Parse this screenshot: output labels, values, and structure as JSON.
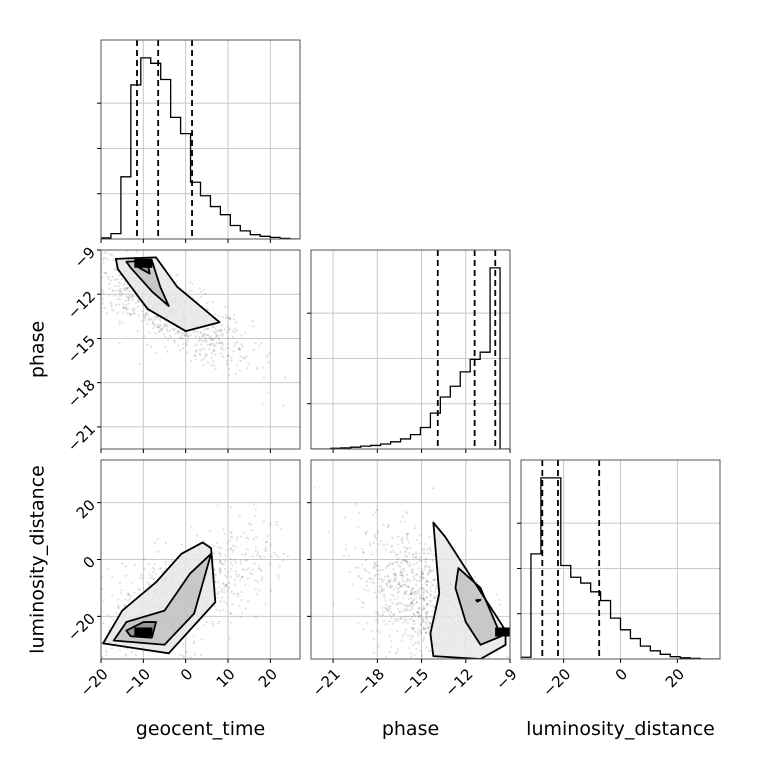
{
  "chart_data": {
    "type": "corner",
    "parameters": [
      "geocent_time",
      "phase",
      "luminosity_distance"
    ],
    "axis_labels": {
      "geocent_time": "geocent_time",
      "phase": "phase",
      "luminosity_distance": "luminosity_distance"
    },
    "ranges": {
      "geocent_time": [
        -20,
        27
      ],
      "phase": [
        -22.5,
        -9
      ],
      "luminosity_distance": [
        -35,
        35
      ]
    },
    "ticks": {
      "geocent_time": [
        -20,
        -10,
        0,
        10,
        20
      ],
      "phase": [
        -21,
        -18,
        -15,
        -12,
        -9
      ],
      "luminosity_distance": [
        -20,
        0,
        20
      ]
    },
    "tick_labels": {
      "geocent_time": [
        "−20",
        "−10",
        "0",
        "10",
        "20"
      ],
      "phase": [
        "−21",
        "−18",
        "−15",
        "−12",
        "−9"
      ],
      "luminosity_distance": [
        "−20",
        "0",
        "20"
      ]
    },
    "ld_diag_ticks": [
      -20,
      0,
      20
    ],
    "quantiles": {
      "geocent_time": [
        -11.5,
        -6.5,
        1.5
      ],
      "phase": [
        -13.9,
        -11.4,
        -10.0
      ],
      "luminosity_distance": [
        -27.5,
        -22.0,
        -7.5
      ]
    },
    "histograms": {
      "geocent_time": {
        "bins": [
          -20,
          -17.65,
          -15.3,
          -12.95,
          -10.6,
          -8.25,
          -5.9,
          -3.55,
          -1.2,
          1.15,
          3.5,
          5.85,
          8.2,
          10.55,
          12.9,
          15.25,
          17.6,
          19.95,
          22.3,
          24.65,
          27
        ],
        "counts": [
          2,
          10,
          115,
          285,
          335,
          325,
          295,
          225,
          195,
          105,
          80,
          60,
          45,
          25,
          15,
          8,
          5,
          3,
          1,
          0
        ]
      },
      "phase": {
        "bins": [
          -22.5,
          -21.825,
          -21.15,
          -20.475,
          -19.8,
          -19.125,
          -18.45,
          -17.775,
          -17.1,
          -16.425,
          -15.75,
          -15.075,
          -14.4,
          -13.725,
          -13.05,
          -12.375,
          -11.7,
          -11.025,
          -10.35,
          -9.675,
          -9
        ],
        "counts": [
          0,
          0,
          2,
          3,
          5,
          8,
          10,
          14,
          20,
          28,
          40,
          60,
          100,
          145,
          175,
          215,
          250,
          270,
          505,
          0
        ]
      },
      "luminosity_distance": {
        "bins": [
          -35,
          -31.5,
          -28,
          -24.5,
          -21,
          -17.5,
          -14,
          -10.5,
          -7,
          -3.5,
          0,
          3.5,
          7,
          10.5,
          14,
          17.5,
          21,
          24.5,
          28,
          31.5,
          35
        ],
        "counts": [
          3,
          180,
          310,
          310,
          160,
          140,
          130,
          115,
          100,
          70,
          50,
          35,
          22,
          14,
          8,
          4,
          2,
          1,
          0,
          0
        ]
      }
    },
    "panel_2d": {
      "phase_vs_geocent_time": {
        "density_peak": {
          "x": -10,
          "y": -9.9
        },
        "sample_center": {
          "x": -5,
          "y": -13
        },
        "levels": [
          [
            [
              -11,
              -9.8
            ],
            [
              -9,
              -9.9
            ],
            [
              -8.5,
              -10.6
            ],
            [
              -11,
              -10.2
            ]
          ],
          [
            [
              -14,
              -9.8
            ],
            [
              -8,
              -9.7
            ],
            [
              -6,
              -11.5
            ],
            [
              -4,
              -12.8
            ],
            [
              -8,
              -11.8
            ],
            [
              -13,
              -10.2
            ]
          ],
          [
            [
              -16.5,
              -9.6
            ],
            [
              -7,
              -9.5
            ],
            [
              -2,
              -11.5
            ],
            [
              8,
              -13.9
            ],
            [
              0,
              -14.5
            ],
            [
              -9,
              -13.0
            ],
            [
              -16,
              -10.3
            ]
          ]
        ]
      },
      "luminosity_distance_vs_geocent_time": {
        "density_peak": {
          "x": -10,
          "y": -25.5
        },
        "sample_center": {
          "x": -2,
          "y": -14
        },
        "levels": [
          [
            [
              -13,
              -27
            ],
            [
              -8,
              -27.5
            ],
            [
              -7,
              -22
            ],
            [
              -10,
              -22
            ],
            [
              -14,
              -25
            ]
          ],
          [
            [
              -17,
              -28.5
            ],
            [
              -5,
              -30
            ],
            [
              2,
              -19
            ],
            [
              6,
              2
            ],
            [
              1,
              -5
            ],
            [
              -5,
              -18
            ],
            [
              -14,
              -22
            ]
          ],
          [
            [
              -19.5,
              -29.5
            ],
            [
              -4,
              -33
            ],
            [
              7,
              -15
            ],
            [
              6,
              4
            ],
            [
              4,
              6
            ],
            [
              -1,
              2
            ],
            [
              -7,
              -8
            ],
            [
              -15,
              -18
            ]
          ]
        ]
      },
      "luminosity_distance_vs_phase": {
        "density_peak": {
          "x": -9.4,
          "y": -25.5
        },
        "sample_center": {
          "x": -15,
          "y": -13
        },
        "levels": [
          [
            [
              -11.2,
              -14.8
            ],
            [
              -11.0,
              -14.2
            ],
            [
              -11.3,
              -14.3
            ]
          ],
          [
            [
              -12.5,
              -3
            ],
            [
              -11,
              -10
            ],
            [
              -9.6,
              -27
            ],
            [
              -11,
              -30
            ],
            [
              -12,
              -22
            ],
            [
              -12.7,
              -10
            ]
          ],
          [
            [
              -14.2,
              13
            ],
            [
              -13.4,
              8
            ],
            [
              -9.3,
              -25
            ],
            [
              -9.3,
              -30
            ],
            [
              -11,
              -35
            ],
            [
              -14.2,
              -34
            ],
            [
              -14.4,
              -26
            ],
            [
              -13.8,
              -12
            ]
          ]
        ]
      }
    }
  }
}
